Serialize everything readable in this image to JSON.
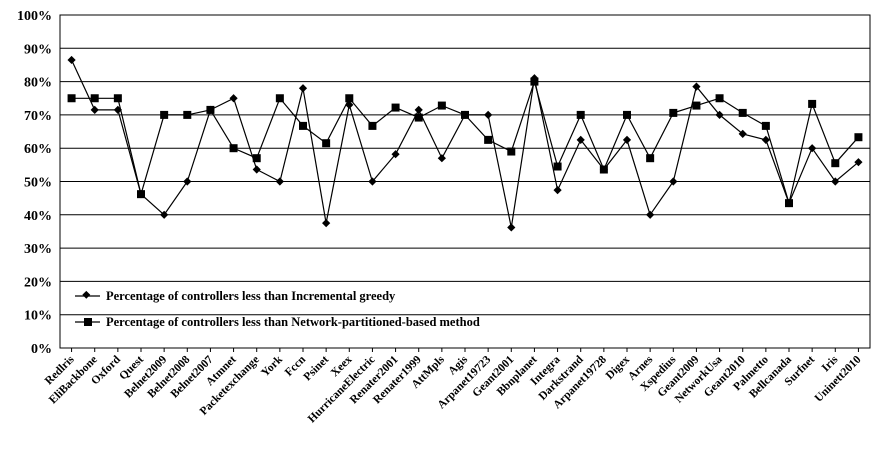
{
  "chart_data": {
    "type": "line",
    "title": "",
    "xlabel": "",
    "ylabel": "",
    "ylim": [
      0,
      100
    ],
    "y_ticks": [
      "0%",
      "10%",
      "20%",
      "30%",
      "40%",
      "50%",
      "60%",
      "70%",
      "80%",
      "90%",
      "100%"
    ],
    "grid": "horizontal",
    "legend_position": "bottom-left",
    "categories": [
      "Redlris",
      "EliBackbone",
      "Oxford",
      "Quest",
      "Belnet2009",
      "Belnet2008",
      "Belnet2007",
      "Atmnet",
      "Packetexchange",
      "York",
      "Fccn",
      "Psinet",
      "Xeex",
      "HurricaneElectric",
      "Renater2001",
      "Renater1999",
      "AttMpls",
      "Agis",
      "Arpanet19723",
      "Geant2001",
      "Bbnplanet",
      "Integra",
      "Darkstrand",
      "Arpanet19728",
      "Digex",
      "Arnes",
      "Xspedius",
      "Geant2009",
      "NetworkUsa",
      "Geant2010",
      "Palmetto",
      "Bellcanada",
      "Surfnet",
      "Iris",
      "Uninett2010"
    ],
    "series": [
      {
        "name": "Percentage of controllers less than Incremental greedy",
        "marker": "diamond",
        "color": "#000000",
        "values": [
          86.5,
          71.5,
          71.5,
          46.2,
          40,
          50,
          71.5,
          75,
          53.6,
          50,
          78,
          37.5,
          73,
          50,
          58.2,
          71.5,
          57,
          70,
          70,
          36.2,
          81,
          47.4,
          62.5,
          53.6,
          62.5,
          40,
          50,
          78.5,
          70,
          64.3,
          62.5,
          43.5,
          60,
          50,
          55.8
        ]
      },
      {
        "name": "Percentage of controllers less than Network-partitioned-based method",
        "marker": "square",
        "color": "#000000",
        "values": [
          75,
          75,
          75,
          46.2,
          70,
          70,
          71.5,
          60,
          57,
          75,
          66.7,
          61.5,
          75,
          66.7,
          72.2,
          69.2,
          72.8,
          70,
          62.5,
          59,
          80,
          54.5,
          70,
          53.6,
          70,
          57,
          70.6,
          72.8,
          75,
          70.6,
          66.7,
          43.5,
          73.3,
          55.5,
          63.3
        ]
      }
    ]
  }
}
